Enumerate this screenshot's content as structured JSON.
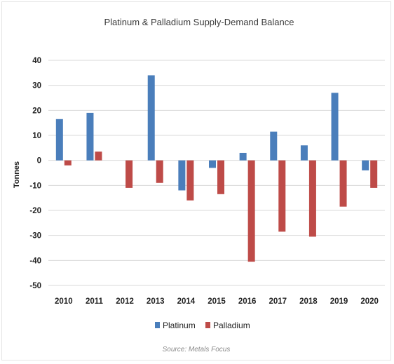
{
  "chart_data": {
    "type": "bar",
    "title": "Platinum & Palladium Supply-Demand Balance",
    "xlabel": "",
    "ylabel": "Tonnes",
    "ylim": [
      -50,
      40
    ],
    "yticks": [
      40,
      30,
      20,
      10,
      0,
      -10,
      -20,
      -30,
      -40,
      -50
    ],
    "grid": true,
    "legend_position": "bottom",
    "categories": [
      "2010",
      "2011",
      "2012",
      "2013",
      "2014",
      "2015",
      "2016",
      "2017",
      "2018",
      "2019",
      "2020"
    ],
    "series": [
      {
        "name": "Platinum",
        "color": "#4a7ebb",
        "values": [
          16.5,
          19,
          0,
          34,
          -12,
          -3,
          3,
          11.5,
          6,
          27,
          -4
        ]
      },
      {
        "name": "Palladium",
        "color": "#be4b48",
        "values": [
          -2,
          3.5,
          -11,
          -9,
          -16,
          -13.5,
          -40.5,
          -28.5,
          -30.5,
          -18.5,
          -11
        ]
      }
    ],
    "source": "Source: Metals Focus"
  }
}
